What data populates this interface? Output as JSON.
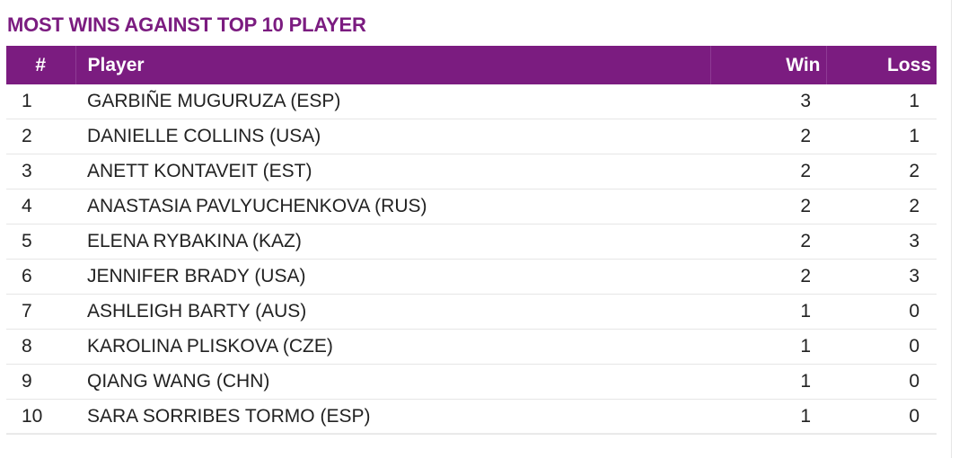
{
  "colors": {
    "accent": "#7b1c80",
    "header_bg": "#7b1c80",
    "header_text": "#ffffff",
    "row_divider": "#e6e6e6"
  },
  "chart_data": {
    "type": "table",
    "title": "MOST WINS AGAINST TOP 10 PLAYER",
    "columns": [
      "#",
      "Player",
      "Win",
      "Loss"
    ],
    "rows": [
      {
        "rank": "1",
        "player": "GARBIÑE MUGURUZA (ESP)",
        "win": 3,
        "loss": 1
      },
      {
        "rank": "2",
        "player": "DANIELLE COLLINS (USA)",
        "win": 2,
        "loss": 1
      },
      {
        "rank": "3",
        "player": "ANETT KONTAVEIT (EST)",
        "win": 2,
        "loss": 2
      },
      {
        "rank": "4",
        "player": "ANASTASIA PAVLYUCHENKOVA (RUS)",
        "win": 2,
        "loss": 2
      },
      {
        "rank": "5",
        "player": "ELENA RYBAKINA (KAZ)",
        "win": 2,
        "loss": 3
      },
      {
        "rank": "6",
        "player": "JENNIFER BRADY (USA)",
        "win": 2,
        "loss": 3
      },
      {
        "rank": "7",
        "player": "ASHLEIGH BARTY (AUS)",
        "win": 1,
        "loss": 0
      },
      {
        "rank": "8",
        "player": "KAROLINA PLISKOVA (CZE)",
        "win": 1,
        "loss": 0
      },
      {
        "rank": "9",
        "player": "QIANG WANG (CHN)",
        "win": 1,
        "loss": 0
      },
      {
        "rank": "10",
        "player": "SARA SORRIBES TORMO (ESP)",
        "win": 1,
        "loss": 0
      }
    ]
  }
}
